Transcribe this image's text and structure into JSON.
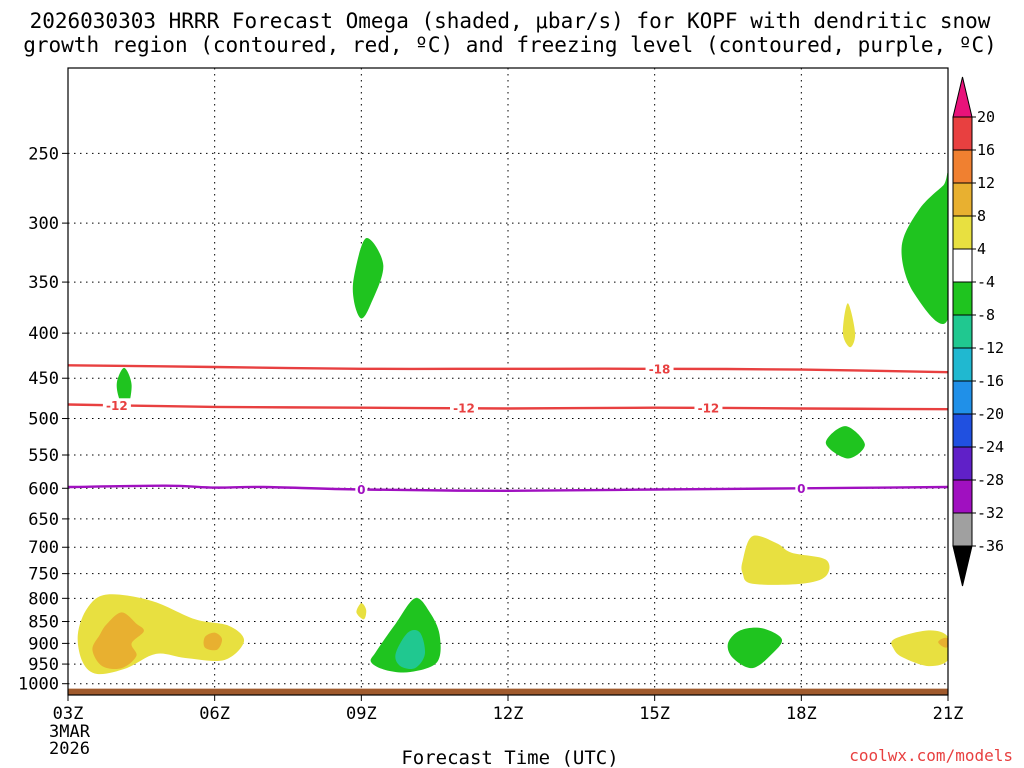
{
  "chart_data": {
    "type": "contour",
    "title": "2026030303 HRRR Forecast Omega (shaded, μbar/s) for KOPF with dendritic snow growth region (contoured, red, ºC) and freezing level (contoured, purple, ºC)",
    "title_lines": [
      "2026030303 HRRR Forecast Omega (shaded, μbar/s) for KOPF with dendritic snow",
      "growth region (contoured, red, ºC) and freezing level (contoured, purple, ºC)"
    ],
    "xlabel": "Forecast Time (UTC)",
    "date_labels": [
      "3MAR",
      "2026"
    ],
    "x_ticks": [
      {
        "hour": 0,
        "label": "03Z"
      },
      {
        "hour": 3,
        "label": "06Z"
      },
      {
        "hour": 6,
        "label": "09Z"
      },
      {
        "hour": 9,
        "label": "12Z"
      },
      {
        "hour": 12,
        "label": "15Z"
      },
      {
        "hour": 15,
        "label": "18Z"
      },
      {
        "hour": 18,
        "label": "21Z"
      }
    ],
    "x_range_hours": [
      0,
      18
    ],
    "y_axis_pressure_hPa": [
      250,
      300,
      350,
      400,
      450,
      500,
      550,
      600,
      650,
      700,
      750,
      800,
      850,
      900,
      950,
      1000
    ],
    "y_range_hPa": [
      200,
      1030
    ],
    "y_scale": "log",
    "colorbar": {
      "labels": [
        "20",
        "16",
        "12",
        "8",
        "4",
        "-4",
        "-8",
        "-12",
        "-16",
        "-20",
        "-24",
        "-28",
        "-32",
        "-36"
      ],
      "colors": [
        "#e8127a",
        "#e84040",
        "#f08030",
        "#e8b030",
        "#e8e040",
        "#ffffff",
        "#1fc41f",
        "#20c890",
        "#20b8d0",
        "#2090e8",
        "#2050e0",
        "#6020c8",
        "#a010c0",
        "#a0a0a0",
        "#000000"
      ]
    },
    "contours": [
      {
        "name": "temp-minus18",
        "kind": "dendritic",
        "value": -18,
        "label": "-18",
        "color": "#e84040",
        "points": [
          [
            0,
            435
          ],
          [
            3,
            437
          ],
          [
            6,
            439
          ],
          [
            9,
            439
          ],
          [
            12,
            439
          ],
          [
            15,
            440
          ],
          [
            18,
            443
          ]
        ],
        "label_hours": [
          12.1
        ]
      },
      {
        "name": "temp-minus12",
        "kind": "dendritic",
        "value": -12,
        "label": "-12",
        "color": "#e84040",
        "points": [
          [
            0,
            482
          ],
          [
            3,
            485
          ],
          [
            6,
            486
          ],
          [
            9,
            487
          ],
          [
            12,
            486
          ],
          [
            15,
            487
          ],
          [
            18,
            488
          ]
        ],
        "label_hours": [
          1.0,
          8.1,
          13.1
        ]
      },
      {
        "name": "freezing-level",
        "kind": "freezing",
        "value": 0,
        "label": "0",
        "color": "#a010c0",
        "points": [
          [
            0,
            598
          ],
          [
            2,
            596
          ],
          [
            3,
            599
          ],
          [
            4,
            598
          ],
          [
            6,
            602
          ],
          [
            9,
            604
          ],
          [
            12,
            602
          ],
          [
            15,
            600
          ],
          [
            18,
            598
          ]
        ],
        "label_hours": [
          6.0,
          15.0
        ]
      }
    ],
    "shaded_regions": [
      {
        "name": "omega-pos4-low-west",
        "value": 4,
        "color": "#e8e040",
        "points": [
          [
            0.4,
            820
          ],
          [
            0.8,
            792
          ],
          [
            1.7,
            805
          ],
          [
            2.6,
            845
          ],
          [
            3.3,
            860
          ],
          [
            3.6,
            895
          ],
          [
            3.2,
            940
          ],
          [
            2.4,
            935
          ],
          [
            1.8,
            925
          ],
          [
            1.2,
            960
          ],
          [
            0.6,
            975
          ],
          [
            0.3,
            945
          ],
          [
            0.2,
            880
          ]
        ]
      },
      {
        "name": "omega-pos8-low-west",
        "value": 8,
        "color": "#e8b030",
        "points": [
          [
            0.8,
            855
          ],
          [
            1.1,
            830
          ],
          [
            1.4,
            855
          ],
          [
            1.55,
            872
          ],
          [
            1.3,
            900
          ],
          [
            1.4,
            930
          ],
          [
            1.1,
            960
          ],
          [
            0.7,
            955
          ],
          [
            0.5,
            915
          ],
          [
            0.65,
            880
          ]
        ]
      },
      {
        "name": "omega-pos8-low-06z",
        "value": 8,
        "color": "#e8b030",
        "points": [
          [
            2.8,
            885
          ],
          [
            3.0,
            875
          ],
          [
            3.15,
            890
          ],
          [
            3.05,
            915
          ],
          [
            2.8,
            910
          ]
        ]
      },
      {
        "name": "omega-pos4-850-09z",
        "value": 4,
        "color": "#e8e040",
        "points": [
          [
            5.9,
            830
          ],
          [
            6.0,
            810
          ],
          [
            6.1,
            825
          ],
          [
            6.05,
            845
          ]
        ]
      },
      {
        "name": "omega-neg4-low-10z",
        "value": -4,
        "color": "#1fc41f",
        "points": [
          [
            6.3,
            920
          ],
          [
            6.7,
            855
          ],
          [
            7.1,
            800
          ],
          [
            7.4,
            830
          ],
          [
            7.6,
            880
          ],
          [
            7.55,
            945
          ],
          [
            7.0,
            970
          ],
          [
            6.5,
            965
          ],
          [
            6.2,
            945
          ]
        ]
      },
      {
        "name": "omega-neg8-low-10z",
        "value": -8,
        "color": "#20c890",
        "points": [
          [
            6.7,
            925
          ],
          [
            6.95,
            875
          ],
          [
            7.2,
            875
          ],
          [
            7.3,
            925
          ],
          [
            7.1,
            960
          ],
          [
            6.8,
            955
          ]
        ]
      },
      {
        "name": "omega-neg4-upper-09z",
        "value": -4,
        "color": "#1fc41f",
        "points": [
          [
            5.85,
            345
          ],
          [
            6.1,
            312
          ],
          [
            6.45,
            335
          ],
          [
            6.2,
            370
          ],
          [
            6.0,
            385
          ],
          [
            5.85,
            368
          ]
        ]
      },
      {
        "name": "omega-neg4-460-04z",
        "value": -4,
        "color": "#1fc41f",
        "points": [
          [
            1.0,
            455
          ],
          [
            1.15,
            438
          ],
          [
            1.3,
            458
          ],
          [
            1.2,
            490
          ],
          [
            1.05,
            475
          ]
        ]
      },
      {
        "name": "omega-pos4-730-17z",
        "value": 4,
        "color": "#e8e040",
        "points": [
          [
            13.8,
            725
          ],
          [
            14.0,
            680
          ],
          [
            14.5,
            693
          ],
          [
            14.8,
            710
          ],
          [
            15.5,
            723
          ],
          [
            15.5,
            755
          ],
          [
            15.0,
            770
          ],
          [
            14.0,
            770
          ],
          [
            13.8,
            750
          ]
        ]
      },
      {
        "name": "omega-neg4-low-17z",
        "value": -4,
        "color": "#1fc41f",
        "points": [
          [
            13.5,
            900
          ],
          [
            13.75,
            870
          ],
          [
            14.2,
            865
          ],
          [
            14.6,
            890
          ],
          [
            14.4,
            925
          ],
          [
            14.0,
            960
          ],
          [
            13.6,
            935
          ]
        ]
      },
      {
        "name": "omega-pos4-390-19z",
        "value": 4,
        "color": "#e8e040",
        "points": [
          [
            15.85,
            400
          ],
          [
            15.95,
            370
          ],
          [
            16.1,
            400
          ],
          [
            16.0,
            415
          ]
        ]
      },
      {
        "name": "omega-neg4-535-19z",
        "value": -4,
        "color": "#1fc41f",
        "points": [
          [
            15.5,
            533
          ],
          [
            15.9,
            510
          ],
          [
            16.3,
            535
          ],
          [
            15.95,
            555
          ]
        ]
      },
      {
        "name": "omega-pos4-low-20z",
        "value": 4,
        "color": "#e8e040",
        "points": [
          [
            16.9,
            890
          ],
          [
            17.6,
            870
          ],
          [
            18.0,
            885
          ],
          [
            18.0,
            940
          ],
          [
            17.6,
            955
          ],
          [
            17.1,
            935
          ],
          [
            16.9,
            915
          ]
        ]
      },
      {
        "name": "omega-pos8-low-20z",
        "value": 8,
        "color": "#e8b030",
        "points": [
          [
            17.8,
            897
          ],
          [
            17.95,
            887
          ],
          [
            18.1,
            898
          ],
          [
            17.95,
            910
          ]
        ]
      },
      {
        "name": "omega-neg4-upper-21z",
        "value": -4,
        "color": "#1fc41f",
        "points": [
          [
            18.0,
            270
          ],
          [
            18.0,
            385
          ],
          [
            17.3,
            360
          ],
          [
            17.05,
            320
          ],
          [
            17.4,
            290
          ],
          [
            17.9,
            272
          ]
        ]
      }
    ],
    "terrain_band_hPa": [
      1013,
      1035
    ]
  },
  "watermark": "coolwx.com/models",
  "colors": {
    "background": "#ffffff",
    "terrain": "#a05a2c",
    "watermark": "#e84040",
    "grid": "#000000"
  }
}
